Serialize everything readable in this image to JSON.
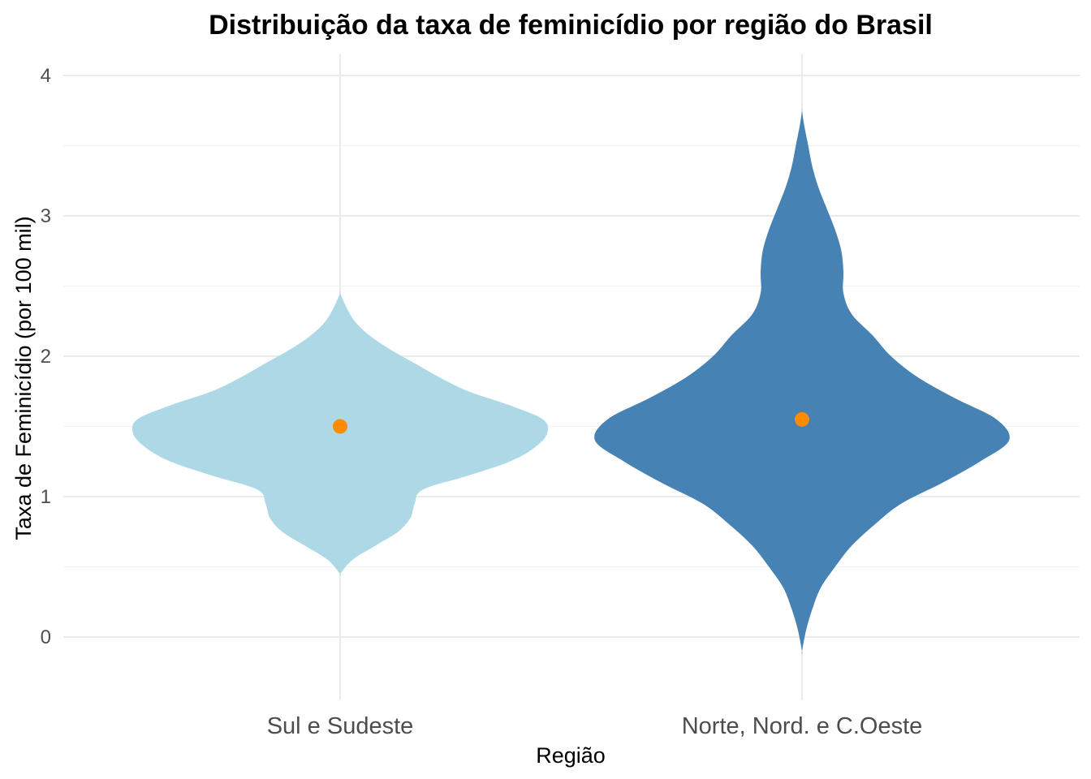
{
  "chart_data": {
    "type": "violin",
    "title": "Distribuição da taxa de feminicídio por região do Brasil",
    "xlabel": "Região",
    "ylabel": "Taxa de Feminicídio (por 100 mil)",
    "ylim": [
      -0.45,
      4.15
    ],
    "yticks": [
      0,
      1,
      2,
      3,
      4
    ],
    "grid": true,
    "categories": [
      "Sul e Sudeste",
      "Norte, Nord. e C.Oeste"
    ],
    "series": [
      {
        "category": "Sul e Sudeste",
        "color": "#add8e6",
        "mean": 1.5,
        "y_range": [
          0.45,
          2.45
        ],
        "density_profile": [
          [
            0.45,
            0.0
          ],
          [
            0.55,
            0.06
          ],
          [
            0.65,
            0.17
          ],
          [
            0.75,
            0.28
          ],
          [
            0.85,
            0.34
          ],
          [
            0.95,
            0.36
          ],
          [
            1.05,
            0.4
          ],
          [
            1.15,
            0.62
          ],
          [
            1.25,
            0.82
          ],
          [
            1.35,
            0.94
          ],
          [
            1.45,
            1.0
          ],
          [
            1.55,
            0.98
          ],
          [
            1.65,
            0.82
          ],
          [
            1.75,
            0.62
          ],
          [
            1.85,
            0.48
          ],
          [
            1.95,
            0.36
          ],
          [
            2.05,
            0.24
          ],
          [
            2.15,
            0.14
          ],
          [
            2.25,
            0.07
          ],
          [
            2.35,
            0.03
          ],
          [
            2.45,
            0.0
          ]
        ]
      },
      {
        "category": "Norte, Nord. e C.Oeste",
        "color": "#4682b4",
        "mean": 1.55,
        "y_range": [
          -0.1,
          3.75
        ],
        "density_profile": [
          [
            -0.1,
            0.0
          ],
          [
            0.05,
            0.02
          ],
          [
            0.2,
            0.05
          ],
          [
            0.35,
            0.09
          ],
          [
            0.5,
            0.16
          ],
          [
            0.65,
            0.24
          ],
          [
            0.8,
            0.35
          ],
          [
            0.95,
            0.48
          ],
          [
            1.1,
            0.68
          ],
          [
            1.25,
            0.86
          ],
          [
            1.4,
            1.0
          ],
          [
            1.55,
            0.94
          ],
          [
            1.7,
            0.74
          ],
          [
            1.85,
            0.56
          ],
          [
            2.0,
            0.43
          ],
          [
            2.15,
            0.34
          ],
          [
            2.3,
            0.24
          ],
          [
            2.45,
            0.2
          ],
          [
            2.6,
            0.2
          ],
          [
            2.75,
            0.19
          ],
          [
            2.9,
            0.16
          ],
          [
            3.05,
            0.12
          ],
          [
            3.2,
            0.08
          ],
          [
            3.35,
            0.05
          ],
          [
            3.5,
            0.03
          ],
          [
            3.65,
            0.01
          ],
          [
            3.75,
            0.0
          ]
        ]
      }
    ],
    "mean_point_color": "#ff8c00"
  }
}
